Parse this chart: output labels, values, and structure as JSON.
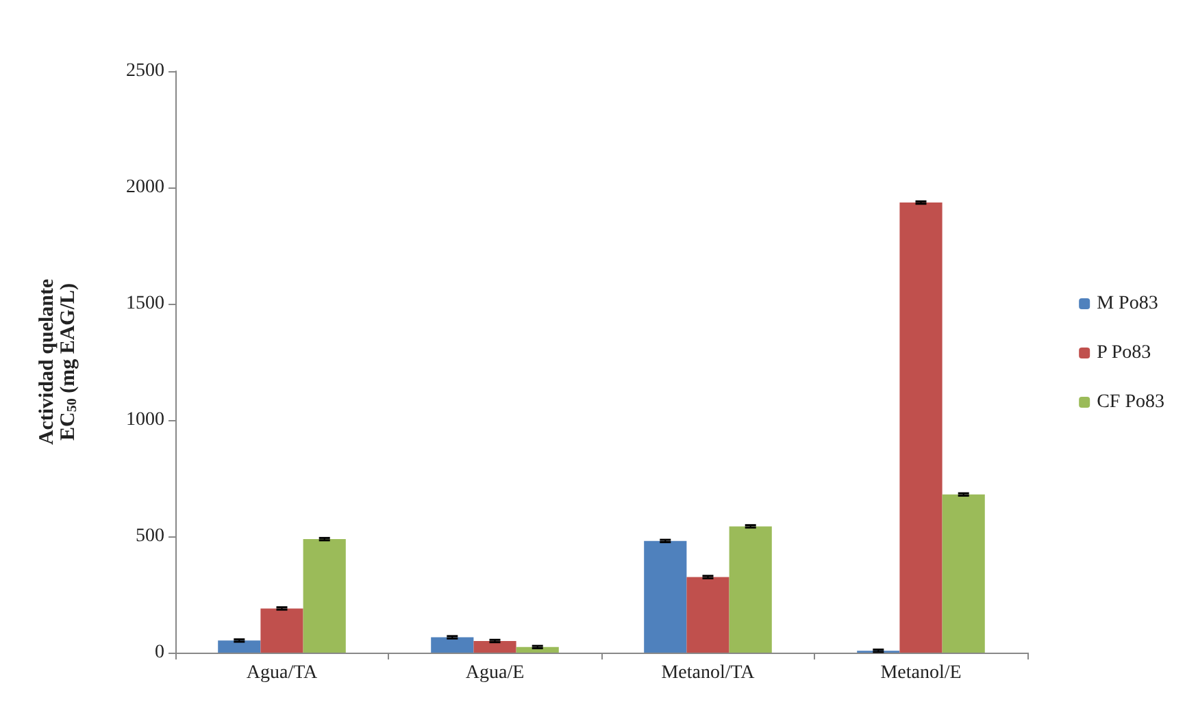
{
  "chart_data": {
    "type": "bar",
    "ylabel": "Actividad quelante\nEC$_{50}$ (mg EAG/L)",
    "categories": [
      "Agua/TA",
      "Agua/E",
      "Metanol/TA",
      "Metanol/E"
    ],
    "series": [
      {
        "name": "M Po83",
        "color": "#4f81bd",
        "values": [
          52,
          66,
          480,
          8
        ],
        "errors": [
          5,
          5,
          5,
          5
        ]
      },
      {
        "name": "P Po83",
        "color": "#c0504d",
        "values": [
          190,
          50,
          325,
          1935
        ],
        "errors": [
          5,
          5,
          5,
          5
        ]
      },
      {
        "name": "CF Po83",
        "color": "#9bbb59",
        "values": [
          488,
          24,
          543,
          680
        ],
        "errors": [
          5,
          5,
          5,
          5
        ]
      }
    ],
    "ylim": [
      0,
      2500
    ],
    "yticks": [
      0,
      500,
      1000,
      1500,
      2000,
      2500
    ],
    "grid": false,
    "legend": "right"
  }
}
